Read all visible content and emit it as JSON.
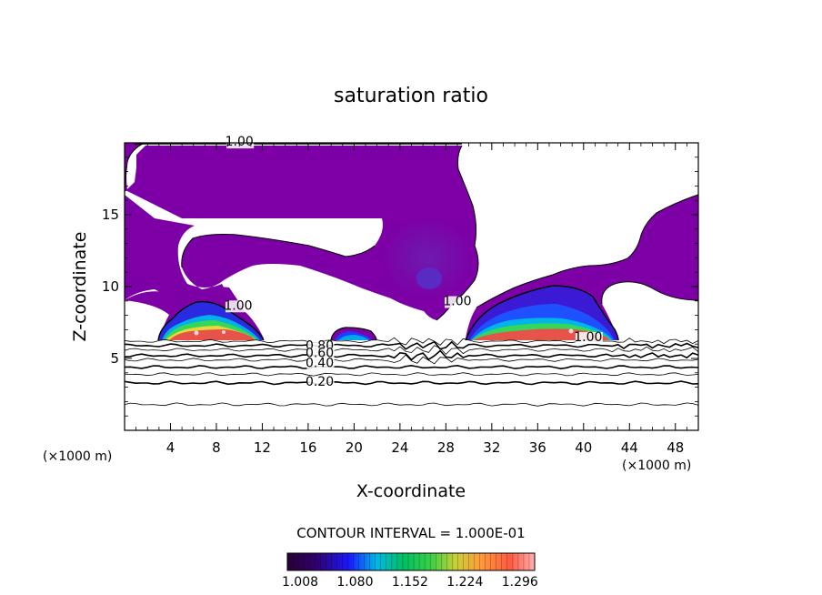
{
  "chart_data": {
    "type": "heatmap",
    "title": "saturation ratio",
    "xlabel": "X-coordinate",
    "ylabel": "Z-coordinate",
    "x_units_left": "(×1000 m)",
    "x_units_right": "(×1000 m)",
    "xlim": [
      0,
      50
    ],
    "ylim": [
      0,
      20
    ],
    "x_ticks": [
      4,
      8,
      12,
      16,
      20,
      24,
      28,
      32,
      36,
      40,
      44,
      48
    ],
    "y_ticks": [
      5,
      10,
      15
    ],
    "contour_interval_text": "CONTOUR INTERVAL = 1.000E-01",
    "contour_labels": [
      {
        "text": "1.00",
        "x": 10.0,
        "z": 19.8
      },
      {
        "text": "1.00",
        "x": 9.9,
        "z": 8.4
      },
      {
        "text": "1.00",
        "x": 29.0,
        "z": 8.7
      },
      {
        "text": "1.00",
        "x": 40.4,
        "z": 6.2
      },
      {
        "text": "0.80",
        "x": 17.0,
        "z": 5.6
      },
      {
        "text": "0.60",
        "x": 17.0,
        "z": 5.1
      },
      {
        "text": "0.40",
        "x": 17.0,
        "z": 4.4
      },
      {
        "text": "0.20",
        "x": 17.0,
        "z": 3.1
      }
    ],
    "contour_levels_lower": [
      0.1,
      0.2,
      0.3,
      0.4,
      0.5,
      0.6,
      0.7,
      0.8,
      0.9
    ],
    "colorbar": {
      "min": 1.008,
      "max": 1.332,
      "tick_labels": [
        "1.008",
        "1.080",
        "1.152",
        "1.224",
        "1.296"
      ]
    },
    "colors": {
      "supersaturated_fill": "#7d00a6",
      "cloud_core_red": "#e5534a",
      "cloud_edge_green": "#35d65a",
      "cloud_edge_blue": "#1e3cff"
    },
    "grid": false,
    "legend": "colorbar-bottom"
  }
}
